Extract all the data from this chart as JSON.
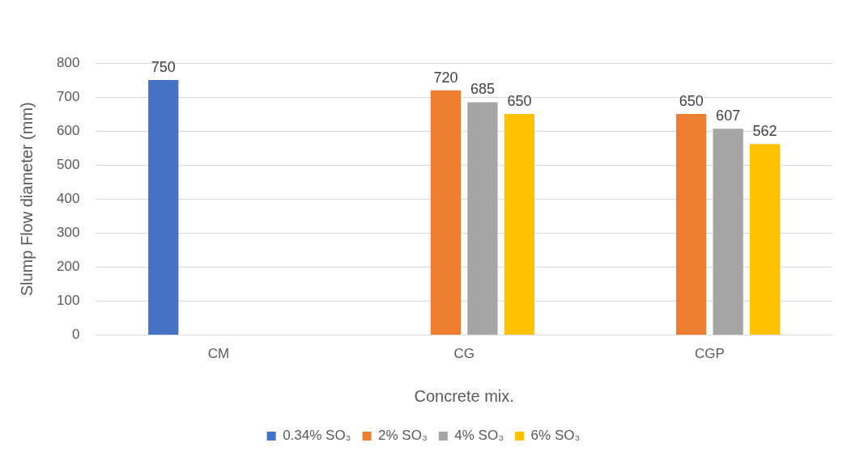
{
  "chart_data": {
    "type": "bar",
    "xlabel": "Concrete mix.",
    "ylabel": "Slump Flow diameter (mm)",
    "categories": [
      "CM",
      "CG",
      "CGP"
    ],
    "series": [
      {
        "name": "0.34% SO₃",
        "color": "#4472c4",
        "values": [
          750,
          null,
          null
        ]
      },
      {
        "name": "2% SO₃",
        "color": "#ed7d31",
        "values": [
          null,
          720,
          650
        ]
      },
      {
        "name": "4% SO₃",
        "color": "#a5a5a5",
        "values": [
          null,
          685,
          607
        ]
      },
      {
        "name": "6% SO₃",
        "color": "#ffc000",
        "values": [
          null,
          650,
          562
        ]
      }
    ],
    "ylim": [
      0,
      800
    ],
    "yticks": [
      0,
      100,
      200,
      300,
      400,
      500,
      600,
      700,
      800
    ],
    "grid": "y",
    "legend": "bottom",
    "data_labels": true
  }
}
